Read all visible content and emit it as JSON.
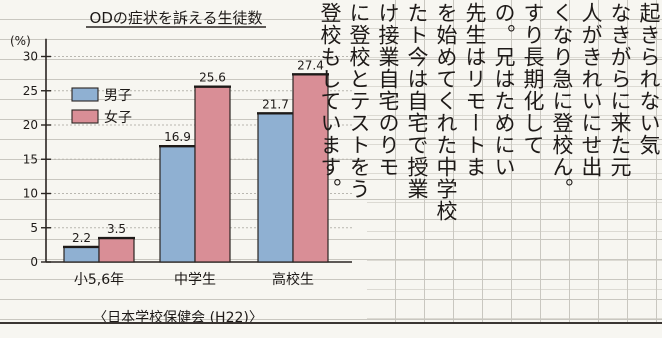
{
  "chart_data": {
    "type": "bar",
    "title": "ODの症状を訴える生徒数",
    "ylabel": "(%)",
    "source": "〈日本学校保健会 (H22)〉",
    "categories": [
      "小5,6年",
      "中学生",
      "高校生"
    ],
    "series": [
      {
        "name": "男子",
        "color": "#8fb0d2",
        "values": [
          2.2,
          16.9,
          21.7
        ]
      },
      {
        "name": "女子",
        "color": "#d98e96",
        "values": [
          3.5,
          25.6,
          27.4
        ]
      }
    ],
    "value_labels": [
      [
        "2.2",
        "3.5"
      ],
      [
        "16.9",
        "25.6"
      ],
      [
        "21.7",
        "27.4"
      ]
    ],
    "yticks": [
      0,
      5,
      10,
      15,
      20,
      25,
      30
    ],
    "ylim": [
      0,
      32
    ],
    "legend": "top-left",
    "grid": true
  },
  "essay": {
    "columns": [
      "起きられない気",
      "なきがらに来た元",
      "人がきれいにせ出",
      "くなり急に登校ん。",
      "すり長期化して",
      "の。兄はためにい",
      "先生はリモートま",
      "を始めてくれた中学校",
      "たト今は自宅で授業",
      "け接業自宅のりモ",
      "に登校とテストをう",
      "登校もしています。"
    ]
  }
}
